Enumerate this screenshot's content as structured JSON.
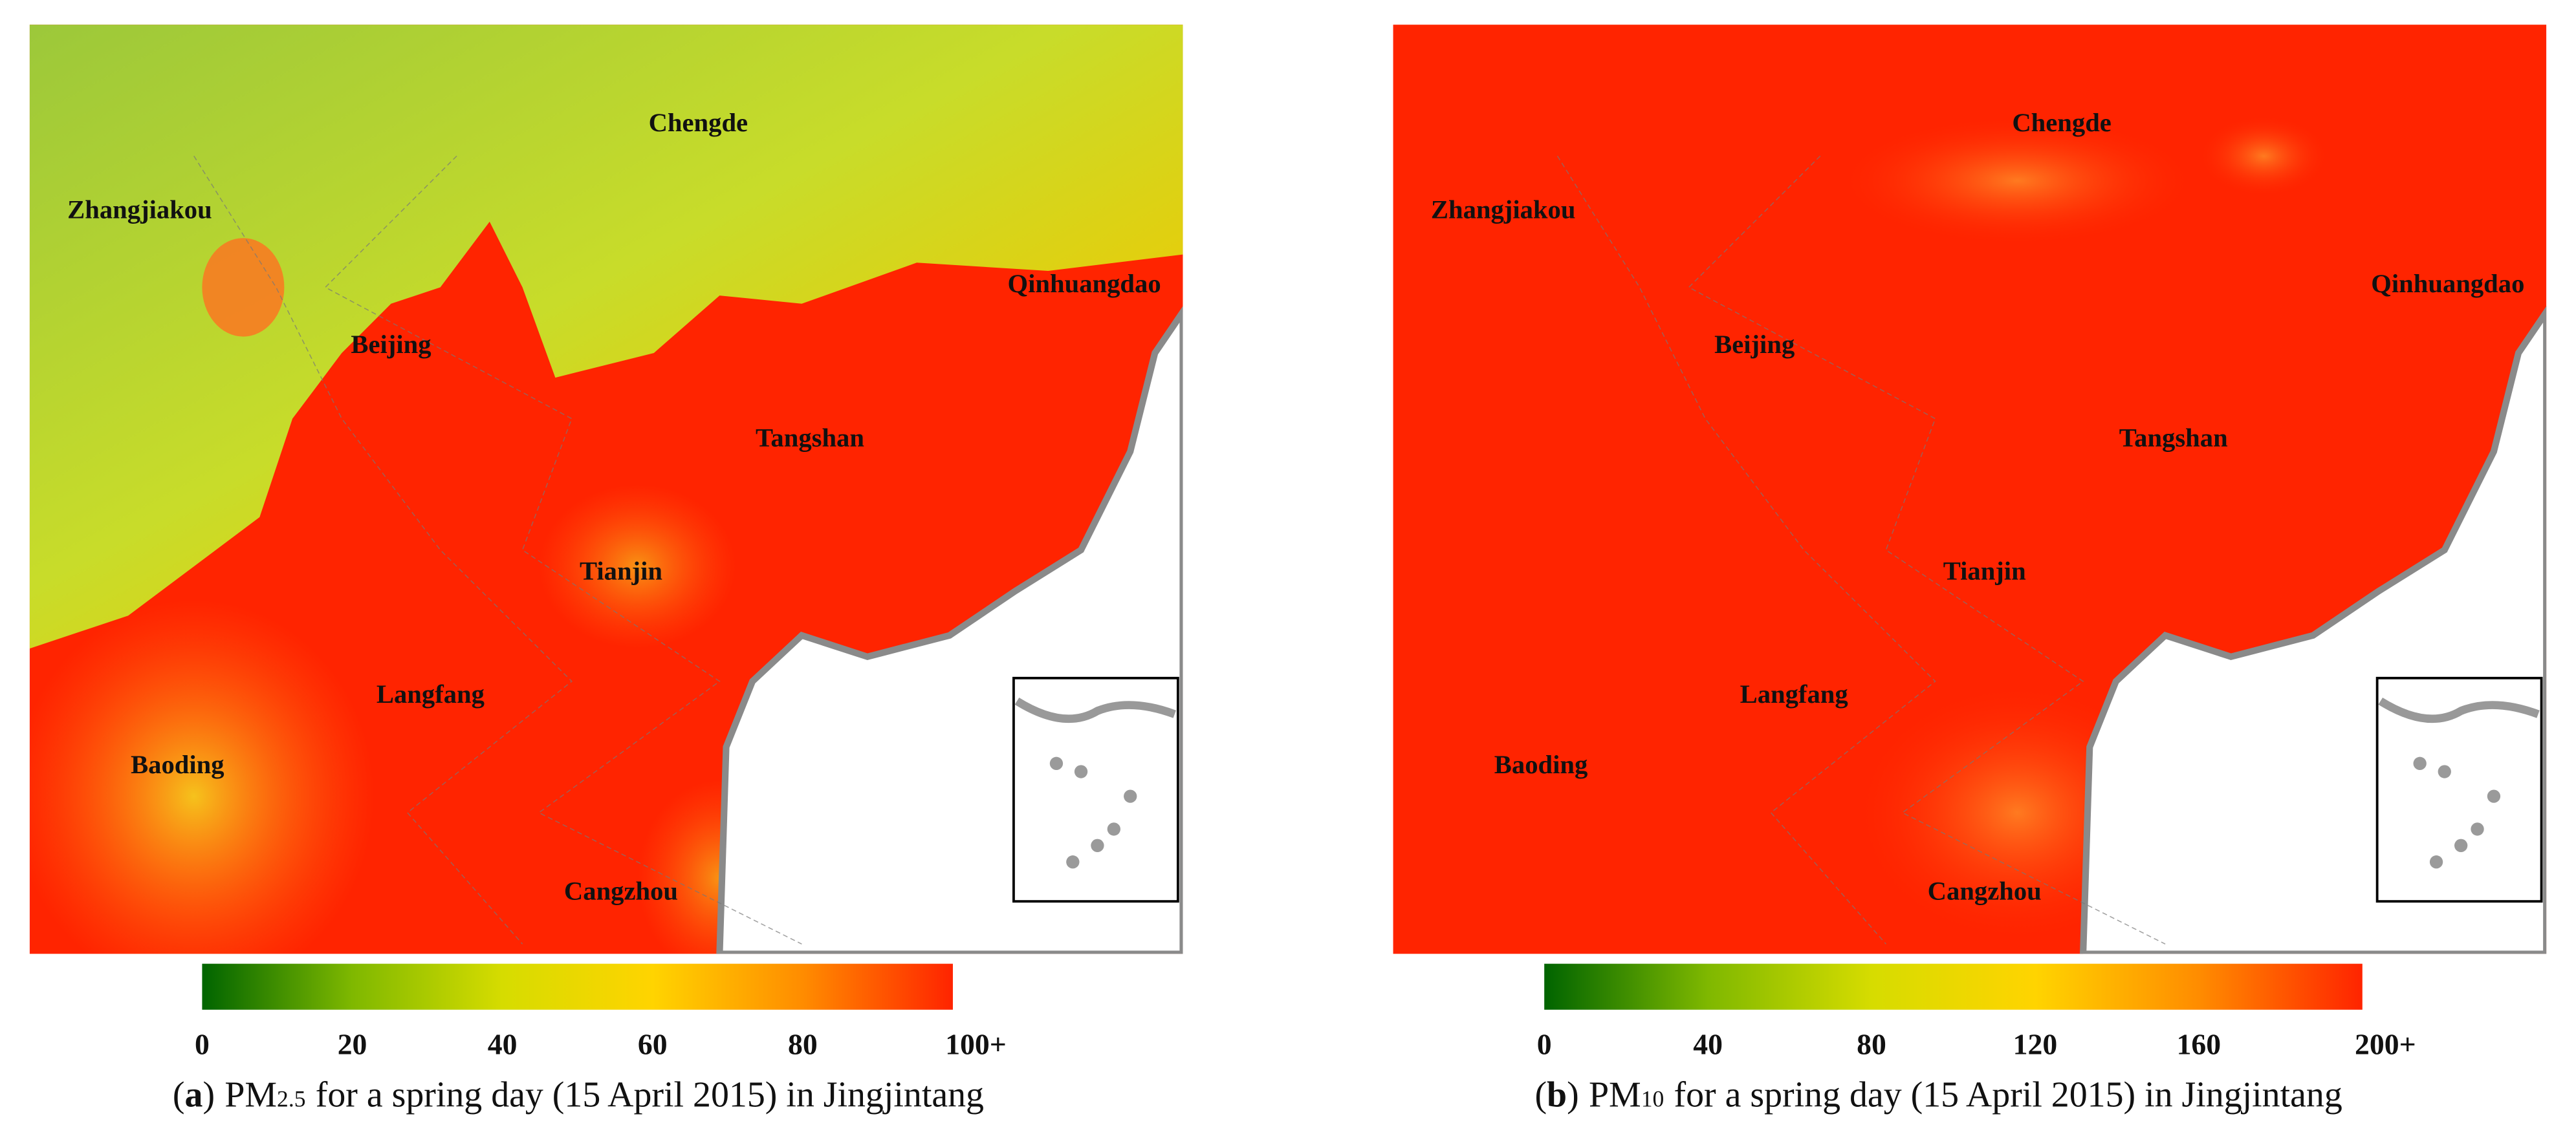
{
  "panels": [
    {
      "cities": [
        "Chengde",
        "Zhangjiakou",
        "Qinhuangdao",
        "Beijing",
        "Tangshan",
        "Tianjin",
        "Langfang",
        "Baoding",
        "Cangzhou"
      ],
      "colorbar": {
        "range": [
          0,
          100
        ],
        "ticks": [
          0,
          20,
          40,
          60,
          80,
          {
            "value": 100,
            "label": "100+"
          }
        ],
        "colors": [
          "#006400",
          "#7fb800",
          "#d6dc00",
          "#ffd400",
          "#ff8c00",
          "#ff2400"
        ]
      },
      "caption": {
        "open": "(",
        "letter": "a",
        "close": ")",
        "pollutant": "PM",
        "subscript": "2.5",
        "text": "for a spring day (15 April 2015) in Jingjintang"
      }
    },
    {
      "cities": [
        "Chengde",
        "Zhangjiakou",
        "Qinhuangdao",
        "Beijing",
        "Tangshan",
        "Tianjin",
        "Langfang",
        "Baoding",
        "Cangzhou"
      ],
      "colorbar": {
        "range": [
          0,
          200
        ],
        "ticks": [
          0,
          40,
          80,
          120,
          160,
          {
            "value": 200,
            "label": "200+"
          }
        ],
        "colors": [
          "#006400",
          "#7fb800",
          "#d6dc00",
          "#ffd400",
          "#ff8c00",
          "#ff2400"
        ]
      },
      "caption": {
        "open": "(",
        "letter": "b",
        "close": ")",
        "pollutant": "PM",
        "subscript": "10",
        "text": "for a spring day (15 April 2015) in Jingjintang"
      }
    }
  ]
}
